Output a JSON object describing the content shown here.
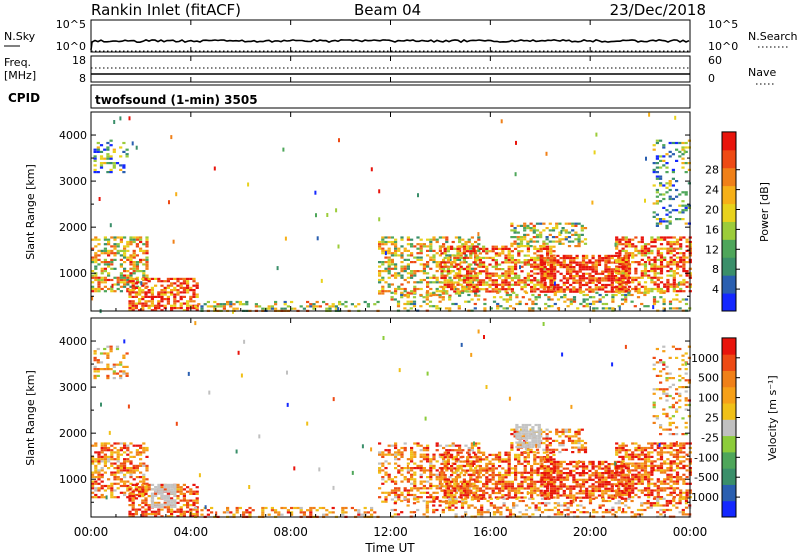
{
  "header": {
    "station": "Rankin Inlet (fitACF)",
    "beam": "Beam 04",
    "date": "23/Dec/2018"
  },
  "top_panel": {
    "nsky_label": "N.Sky",
    "nsky_ticks": [
      "10^5",
      "10^0"
    ],
    "nsearch_label": "N.Search",
    "nsearch_ticks": [
      "10^5",
      "10^0"
    ],
    "freq_label_1": "Freq.",
    "freq_label_2": "[MHz]",
    "freq_ticks": [
      "18",
      "8"
    ],
    "nave_label": "Nave",
    "nave_ticks": [
      "60",
      "0"
    ],
    "cpid_label": "CPID",
    "cpid_text": "twofsound (1-min) 3505"
  },
  "chart_data": [
    {
      "type": "heatmap",
      "name": "power-panel",
      "xlabel": "Time UT",
      "ylabel": "Slant Range [km]",
      "x_ticks": [
        "00:00",
        "04:00",
        "08:00",
        "12:00",
        "16:00",
        "20:00",
        "00:00"
      ],
      "x_range_hours": [
        0,
        24
      ],
      "y_ticks": [
        1000,
        2000,
        3000,
        4000
      ],
      "ylim": [
        180,
        4500
      ],
      "colorbar": {
        "label": "Power [dB]",
        "tick_labels": [
          "4",
          "8",
          "12",
          "16",
          "20",
          "24",
          "28"
        ],
        "colors": [
          "#1428ff",
          "#2a5fb0",
          "#3a8f6a",
          "#4ea65a",
          "#9ccc3a",
          "#e8d21c",
          "#f6b018",
          "#f08018",
          "#ee4a14",
          "#e8140c"
        ]
      }
    },
    {
      "type": "heatmap",
      "name": "velocity-panel",
      "xlabel": "Time UT",
      "ylabel": "Slant Range [km]",
      "x_ticks": [
        "00:00",
        "04:00",
        "08:00",
        "12:00",
        "16:00",
        "20:00",
        "00:00"
      ],
      "x_range_hours": [
        0,
        24
      ],
      "y_ticks": [
        1000,
        2000,
        3000,
        4000
      ],
      "ylim": [
        180,
        4500
      ],
      "colorbar": {
        "label": "Velocity [m s⁻¹]",
        "tick_labels": [
          "1000",
          "500",
          "100",
          "25",
          "-25",
          "-100",
          "-500",
          "-1000"
        ],
        "colors": [
          "#1428ff",
          "#2a5fb0",
          "#3a8f6a",
          "#4ea65a",
          "#8ccc3a",
          "#c0c0c0",
          "#f0c018",
          "#f6a018",
          "#f08018",
          "#ee4a14",
          "#e8140c"
        ]
      }
    }
  ]
}
